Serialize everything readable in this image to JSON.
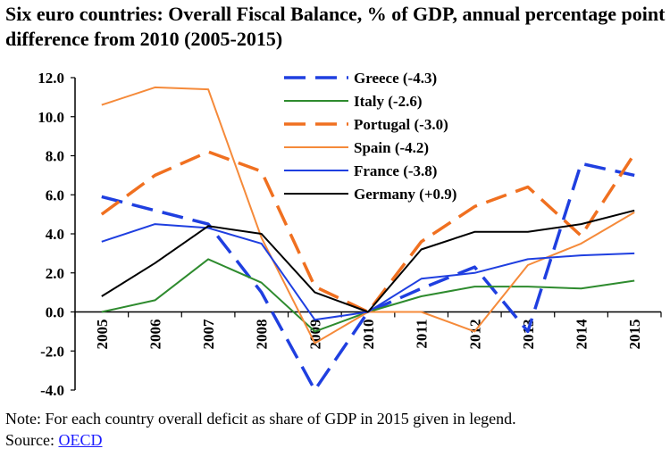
{
  "title": "Six euro countries: Overall Fiscal Balance, % of GDP, annual percentage point difference from 2010 (2005-2015)",
  "note": "Note: For each country overall deficit as share of GDP in 2015 given in legend.",
  "source": {
    "label": "Source:",
    "link": "OECD"
  },
  "chart_data": {
    "type": "line",
    "title": "Six euro countries: Overall Fiscal Balance, % of GDP, annual percentage point difference from 2010 (2005-2015)",
    "xlabel": "",
    "ylabel": "",
    "x": [
      "2005",
      "2006",
      "2007",
      "2008",
      "2009",
      "2010",
      "2011",
      "2012",
      "2013",
      "2014",
      "2015"
    ],
    "yticks": [
      "12.0",
      "10.0",
      "8.0",
      "6.0",
      "4.0",
      "2.0",
      "0.0",
      "-2.0",
      "-4.0"
    ],
    "ylim": [
      -4,
      12
    ],
    "legend_position": "top-center",
    "series": [
      {
        "name": "Greece (-4.3)",
        "color": "#1f3fe0",
        "dash": "long",
        "values": [
          5.9,
          5.2,
          4.5,
          1.0,
          -4.0,
          0.0,
          1.2,
          2.3,
          -1.0,
          7.6,
          7.0
        ]
      },
      {
        "name": "Italy (-2.6)",
        "color": "#2e8b2e",
        "dash": "solid",
        "values": [
          0.0,
          0.6,
          2.7,
          1.5,
          -1.0,
          0.0,
          0.8,
          1.3,
          1.3,
          1.2,
          1.6
        ]
      },
      {
        "name": "Portugal (-3.0)",
        "color": "#f07020",
        "dash": "long",
        "values": [
          5.0,
          7.0,
          8.2,
          7.2,
          1.3,
          0.0,
          3.6,
          5.4,
          6.4,
          3.9,
          8.1
        ]
      },
      {
        "name": "Spain (-4.2)",
        "color": "#f58a3a",
        "dash": "solid",
        "values": [
          10.6,
          11.5,
          11.4,
          3.8,
          -1.6,
          0.0,
          0.0,
          -1.0,
          2.4,
          3.5,
          5.1
        ]
      },
      {
        "name": "France (-3.8)",
        "color": "#1f3fe0",
        "dash": "solid",
        "values": [
          3.6,
          4.5,
          4.3,
          3.5,
          -0.4,
          0.0,
          1.7,
          2.0,
          2.7,
          2.9,
          3.0
        ]
      },
      {
        "name": "Germany (+0.9)",
        "color": "#000000",
        "dash": "solid",
        "values": [
          0.8,
          2.5,
          4.4,
          4.0,
          1.0,
          0.0,
          3.2,
          4.1,
          4.1,
          4.5,
          5.2
        ]
      }
    ]
  }
}
